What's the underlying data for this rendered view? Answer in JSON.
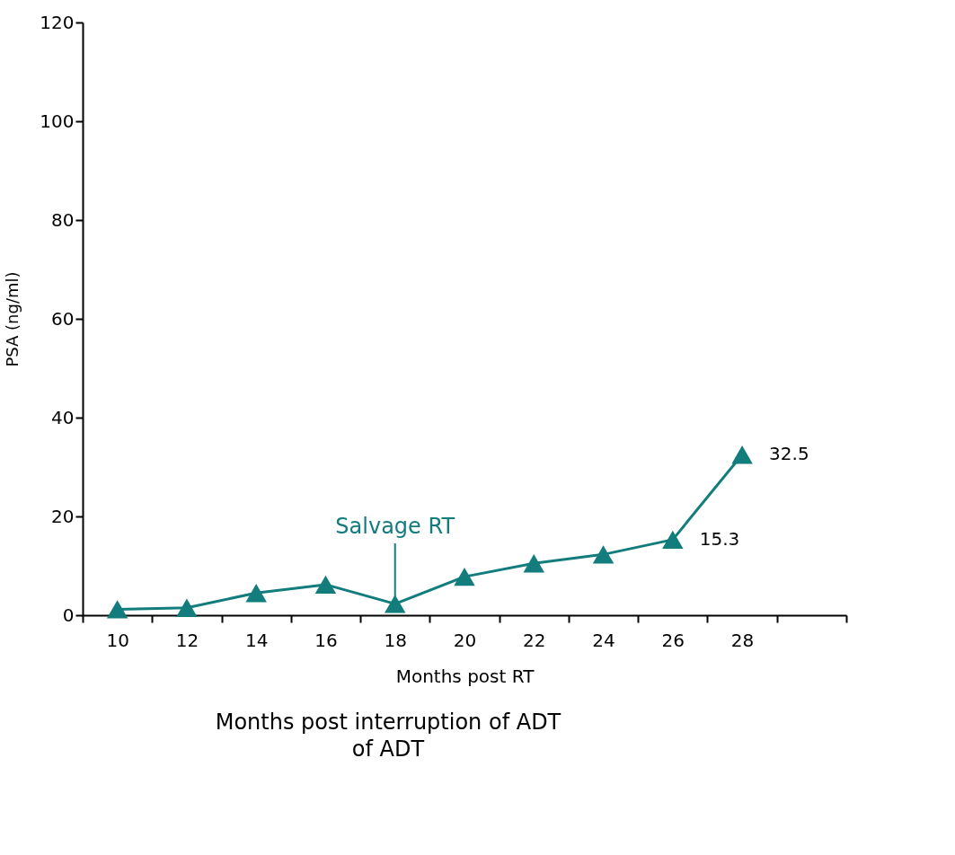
{
  "chart_data": {
    "type": "line",
    "xlabel": "Months post RT",
    "ylabel": "PSA (ng/ml)",
    "categories": [
      "10",
      "12",
      "14",
      "16",
      "18",
      "20",
      "22",
      "24",
      "26",
      "28",
      null
    ],
    "series": [
      {
        "color": "#137c7c",
        "values": [
          1.2,
          1.5,
          4.5,
          6.2,
          2.3,
          7.8,
          10.5,
          12.3,
          15.3,
          32.5,
          null
        ],
        "value_labels": [
          null,
          null,
          null,
          null,
          null,
          null,
          null,
          null,
          "15.3",
          "32.5",
          null
        ]
      }
    ],
    "ylim": [
      0,
      120
    ],
    "yticks": [
      0,
      20,
      40,
      60,
      80,
      100,
      120
    ],
    "grid": false,
    "marker": "triangle",
    "line_style": "solid",
    "annotations": [
      {
        "text": "Salvage RT",
        "x": "18",
        "y": 2.3
      },
      "Months post interruption of ADT",
      "of ADT"
    ]
  }
}
